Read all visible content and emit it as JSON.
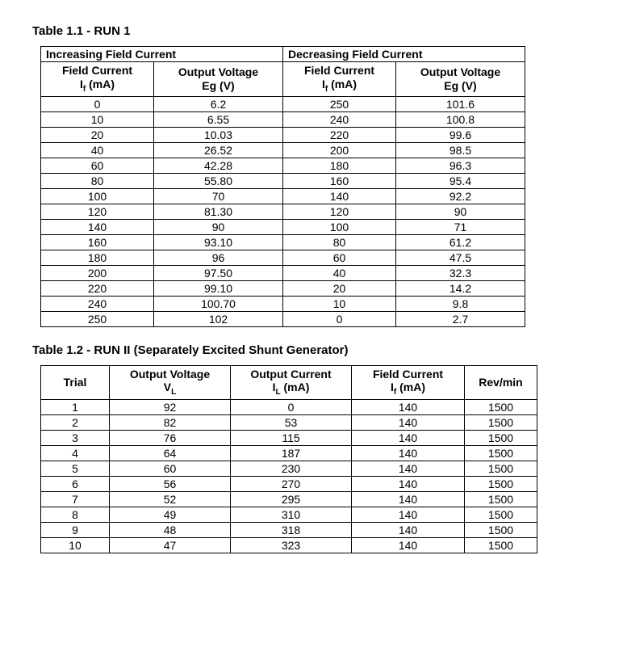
{
  "table1": {
    "title": "Table 1.1 - RUN 1",
    "group_headers": {
      "inc": "Increasing Field Current",
      "dec": "Decreasing Field Current"
    },
    "sub_headers": {
      "fc_label": "Field Current",
      "fc_unit": "If (mA)",
      "ov_label": "Output Voltage",
      "ov_unit": "Eg (V)"
    },
    "rows": [
      {
        "inc_if": "0",
        "inc_eg": "6.2",
        "dec_if": "250",
        "dec_eg": "101.6"
      },
      {
        "inc_if": "10",
        "inc_eg": "6.55",
        "dec_if": "240",
        "dec_eg": "100.8"
      },
      {
        "inc_if": "20",
        "inc_eg": "10.03",
        "dec_if": "220",
        "dec_eg": "99.6"
      },
      {
        "inc_if": "40",
        "inc_eg": "26.52",
        "dec_if": "200",
        "dec_eg": "98.5"
      },
      {
        "inc_if": "60",
        "inc_eg": "42.28",
        "dec_if": "180",
        "dec_eg": "96.3"
      },
      {
        "inc_if": "80",
        "inc_eg": "55.80",
        "dec_if": "160",
        "dec_eg": "95.4"
      },
      {
        "inc_if": "100",
        "inc_eg": "70",
        "dec_if": "140",
        "dec_eg": "92.2"
      },
      {
        "inc_if": "120",
        "inc_eg": "81.30",
        "dec_if": "120",
        "dec_eg": "90"
      },
      {
        "inc_if": "140",
        "inc_eg": "90",
        "dec_if": "100",
        "dec_eg": "71"
      },
      {
        "inc_if": "160",
        "inc_eg": "93.10",
        "dec_if": "80",
        "dec_eg": "61.2"
      },
      {
        "inc_if": "180",
        "inc_eg": "96",
        "dec_if": "60",
        "dec_eg": "47.5"
      },
      {
        "inc_if": "200",
        "inc_eg": "97.50",
        "dec_if": "40",
        "dec_eg": "32.3"
      },
      {
        "inc_if": "220",
        "inc_eg": "99.10",
        "dec_if": "20",
        "dec_eg": "14.2"
      },
      {
        "inc_if": "240",
        "inc_eg": "100.70",
        "dec_if": "10",
        "dec_eg": "9.8"
      },
      {
        "inc_if": "250",
        "inc_eg": "102",
        "dec_if": "0",
        "dec_eg": "2.7"
      }
    ]
  },
  "table2": {
    "title": "Table 1.2 - RUN II (Separately Excited Shunt Generator)",
    "headers": {
      "trial": "Trial",
      "ov_label": "Output Voltage",
      "ov_unit": "VL",
      "oc_label": "Output Current",
      "oc_unit": "IL (mA)",
      "fc_label": "Field Current",
      "fc_unit": "If (mA)",
      "rev": "Rev/min"
    },
    "rows": [
      {
        "trial": "1",
        "vl": "92",
        "il": "0",
        "if": "140",
        "rev": "1500"
      },
      {
        "trial": "2",
        "vl": "82",
        "il": "53",
        "if": "140",
        "rev": "1500"
      },
      {
        "trial": "3",
        "vl": "76",
        "il": "115",
        "if": "140",
        "rev": "1500"
      },
      {
        "trial": "4",
        "vl": "64",
        "il": "187",
        "if": "140",
        "rev": "1500"
      },
      {
        "trial": "5",
        "vl": "60",
        "il": "230",
        "if": "140",
        "rev": "1500"
      },
      {
        "trial": "6",
        "vl": "56",
        "il": "270",
        "if": "140",
        "rev": "1500"
      },
      {
        "trial": "7",
        "vl": "52",
        "il": "295",
        "if": "140",
        "rev": "1500"
      },
      {
        "trial": "8",
        "vl": "49",
        "il": "310",
        "if": "140",
        "rev": "1500"
      },
      {
        "trial": "9",
        "vl": "48",
        "il": "318",
        "if": "140",
        "rev": "1500"
      },
      {
        "trial": "10",
        "vl": "47",
        "il": "323",
        "if": "140",
        "rev": "1500"
      }
    ]
  }
}
